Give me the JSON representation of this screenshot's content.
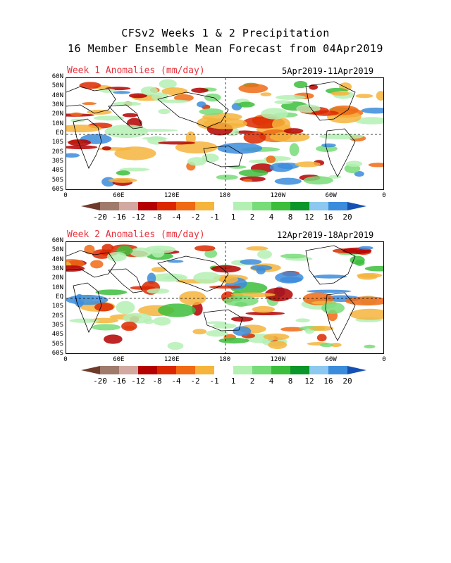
{
  "title_line1": "CFSv2 Weeks 1 & 2 Precipitation",
  "title_line2": "16 Member Ensemble Mean Forecast from 04Apr2019",
  "panels": [
    {
      "title": "Week 1 Anomalies (mm/day)",
      "dates": "5Apr2019-11Apr2019"
    },
    {
      "title": "Week 2 Anomalies (mm/day)",
      "dates": "12Apr2019-18Apr2019"
    }
  ],
  "lat_labels": [
    "60N",
    "50N",
    "40N",
    "30N",
    "20N",
    "10N",
    "EQ",
    "10S",
    "20S",
    "30S",
    "40S",
    "50S",
    "60S"
  ],
  "lon_labels": [
    "0",
    "60E",
    "120E",
    "180",
    "120W",
    "60W",
    "0"
  ],
  "colorbar": {
    "labels": [
      "-20",
      "-16",
      "-12",
      "-8",
      "-4",
      "-2",
      "-1",
      "1",
      "2",
      "4",
      "8",
      "12",
      "16",
      "20"
    ],
    "colors": [
      "#6e3a2a",
      "#a07a6a",
      "#d2a8a0",
      "#b40000",
      "#dc2800",
      "#f06a14",
      "#f5b43c",
      "#ffffff",
      "#b4f0b4",
      "#78dc78",
      "#3cbe3c",
      "#0a9628",
      "#8cc8f0",
      "#3c8cdc",
      "#1450b4"
    ]
  }
}
